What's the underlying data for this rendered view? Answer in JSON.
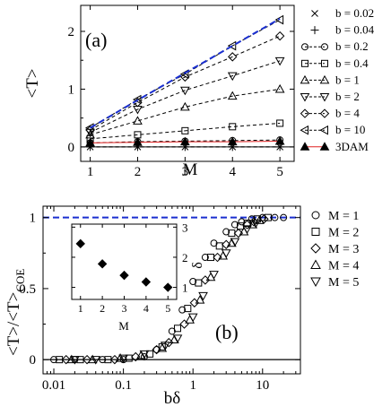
{
  "chart_data": [
    {
      "type": "line",
      "panel_label": "(a)",
      "xlabel": "M",
      "ylabel": "<T>",
      "xlim": [
        0.8,
        5.3
      ],
      "ylim": [
        -0.25,
        2.45
      ],
      "xticks": [
        1,
        2,
        3,
        4,
        5
      ],
      "yticks": [
        0,
        1,
        2
      ],
      "x": [
        1,
        2,
        3,
        4,
        5
      ],
      "legend_position": "right",
      "series": [
        {
          "name": "b = 0.02",
          "marker": "x",
          "values": [
            0.0,
            0.0,
            0.0,
            0.0,
            0.0
          ]
        },
        {
          "name": "b = 0.04",
          "marker": "plus",
          "values": [
            0.0,
            0.0,
            0.0,
            0.0,
            0.0
          ]
        },
        {
          "name": "b = 0.2",
          "marker": "circle",
          "values": [
            0.07,
            0.09,
            0.1,
            0.11,
            0.12
          ]
        },
        {
          "name": "b = 0.4",
          "marker": "square",
          "values": [
            0.14,
            0.21,
            0.28,
            0.35,
            0.41
          ]
        },
        {
          "name": "b = 1",
          "marker": "triangle-up",
          "values": [
            0.21,
            0.45,
            0.69,
            0.88,
            1.0
          ]
        },
        {
          "name": "b = 2",
          "marker": "triangle-down",
          "values": [
            0.25,
            0.65,
            0.98,
            1.23,
            1.49
          ]
        },
        {
          "name": "b = 4",
          "marker": "diamond",
          "values": [
            0.29,
            0.77,
            1.21,
            1.56,
            1.92
          ]
        },
        {
          "name": "b = 10",
          "marker": "triangle-left",
          "values": [
            0.33,
            0.82,
            1.26,
            1.75,
            2.2
          ]
        },
        {
          "name": "3DAM",
          "marker": "triangle-up-filled",
          "line_color": "#e02020",
          "values": [
            0.07,
            0.08,
            0.09,
            0.09,
            0.1
          ]
        }
      ],
      "reference_line": {
        "color": "#1a2fd0",
        "style": "dashed",
        "values": [
          0.33,
          0.81,
          1.28,
          1.75,
          2.22
        ]
      }
    },
    {
      "type": "scatter",
      "panel_label": "(b)",
      "xlabel": "bδ",
      "ylabel_main": "<T>/<T>",
      "ylabel_sub": "COE",
      "x_scale": "log",
      "xlim": [
        0.007,
        35
      ],
      "ylim": [
        -0.1,
        1.08
      ],
      "xticks": [
        0.01,
        0.1,
        1,
        10
      ],
      "xtick_labels": [
        "0.01",
        "0.1",
        "1",
        "10"
      ],
      "yticks": [
        0,
        0.5,
        1
      ],
      "ytick_labels": [
        "0",
        "0.5",
        "1"
      ],
      "reference_line_y": 1,
      "zero_line_y": 0,
      "legend_position": "right",
      "series": [
        {
          "name": "M = 1",
          "marker": "circle",
          "x": [
            0.01,
            0.02,
            0.05,
            0.1,
            0.2,
            0.3,
            0.5,
            0.7,
            1.0,
            1.5,
            2.0,
            3.0,
            4.0,
            5.0,
            7.0,
            10.0,
            15.0,
            20.0
          ],
          "y": [
            0.0,
            0.0,
            0.0,
            0.0,
            0.02,
            0.07,
            0.2,
            0.35,
            0.55,
            0.72,
            0.82,
            0.9,
            0.95,
            0.97,
            0.99,
            1.0,
            1.0,
            1.0
          ]
        },
        {
          "name": "M = 2",
          "marker": "square",
          "x": [
            0.012,
            0.024,
            0.06,
            0.12,
            0.24,
            0.36,
            0.6,
            0.84,
            1.2,
            1.8,
            2.4,
            3.6,
            4.8,
            6.0,
            8.4,
            12.0
          ],
          "y": [
            0.0,
            0.0,
            0.0,
            0.01,
            0.04,
            0.09,
            0.22,
            0.36,
            0.54,
            0.72,
            0.8,
            0.89,
            0.94,
            0.96,
            0.99,
            1.0
          ]
        },
        {
          "name": "M = 3",
          "marker": "diamond",
          "x": [
            0.015,
            0.03,
            0.075,
            0.15,
            0.3,
            0.45,
            0.75,
            1.05,
            1.5,
            2.25,
            3.0,
            4.5,
            6.0,
            7.5,
            10.5
          ],
          "y": [
            0.0,
            0.0,
            0.0,
            0.02,
            0.07,
            0.12,
            0.25,
            0.4,
            0.56,
            0.72,
            0.81,
            0.89,
            0.95,
            0.97,
            0.99
          ]
        },
        {
          "name": "M = 4",
          "marker": "triangle-up",
          "x": [
            0.018,
            0.036,
            0.09,
            0.18,
            0.36,
            0.54,
            0.9,
            1.26,
            1.8,
            2.7,
            3.6,
            5.4,
            7.2,
            9.0
          ],
          "y": [
            0.0,
            0.0,
            0.01,
            0.03,
            0.08,
            0.14,
            0.28,
            0.42,
            0.58,
            0.73,
            0.82,
            0.9,
            0.95,
            0.98
          ]
        },
        {
          "name": "M = 5",
          "marker": "triangle-down",
          "x": [
            0.02,
            0.04,
            0.1,
            0.2,
            0.4,
            0.6,
            1.0,
            1.4,
            2.0,
            3.0,
            4.0,
            6.0,
            8.0
          ],
          "y": [
            0.0,
            0.0,
            0.01,
            0.04,
            0.1,
            0.15,
            0.3,
            0.45,
            0.6,
            0.75,
            0.83,
            0.92,
            0.96
          ]
        }
      ],
      "inset": {
        "type": "scatter",
        "xlabel": "M",
        "ylabel": "δ",
        "xlim": [
          0.6,
          5.4
        ],
        "ylim": [
          0.6,
          3.1
        ],
        "xticks": [
          1,
          2,
          3,
          4,
          5
        ],
        "yticks": [
          1,
          2,
          3
        ],
        "y_axis_side": "right",
        "marker": "diamond-filled",
        "x": [
          1,
          2,
          3,
          4,
          5
        ],
        "y": [
          2.45,
          1.78,
          1.4,
          1.18,
          1.0
        ]
      }
    }
  ]
}
